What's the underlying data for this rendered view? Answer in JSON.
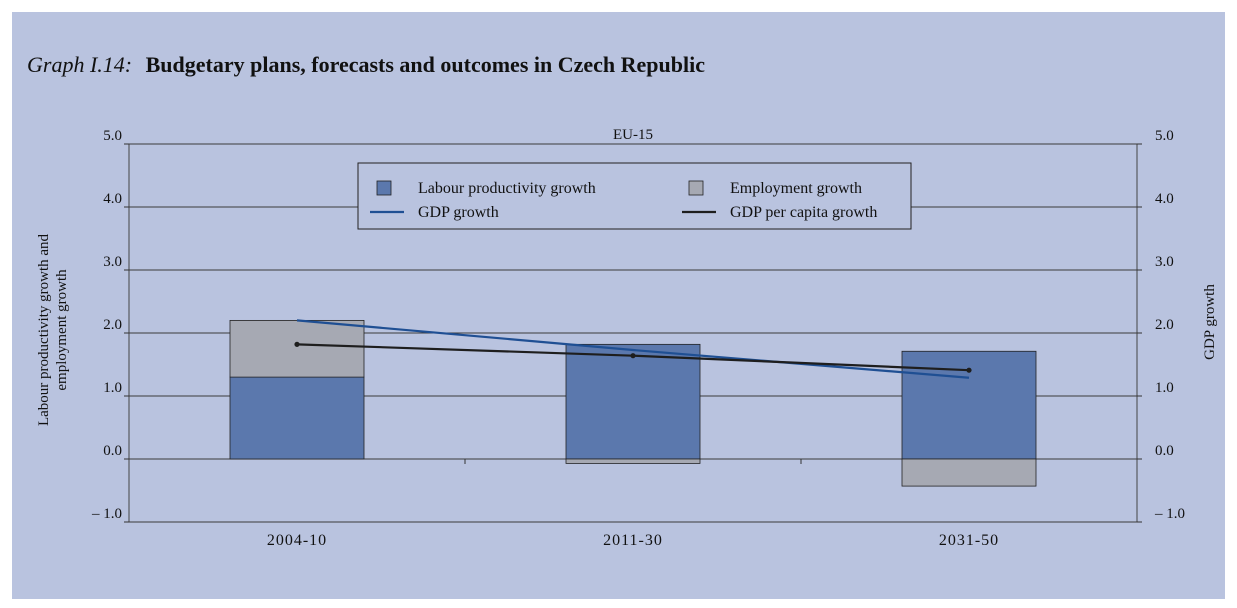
{
  "title": {
    "prefix": "Graph I.14:",
    "main": "Budgetary plans, forecasts and outcomes in Czech Republic"
  },
  "colors": {
    "background": "#b9c3df",
    "productivity": "#5b78ad",
    "employment": "#a6a9b3",
    "gdp_growth_line": "#1f4f93",
    "gdp_per_capita_line": "#1e1e1e",
    "gridline": "#3b3b3b"
  },
  "chart_data": {
    "type": "bar",
    "title": "EU-15",
    "categories": [
      "2004-10",
      "2011-30",
      "2031-50"
    ],
    "ylabel_left": "Labour productivity growth and employment growth",
    "ylabel_right": "GDP growth",
    "ylim": [
      -1.0,
      5.0
    ],
    "yticks_left": [
      "5.0",
      "4.0",
      "3.0",
      "2.0",
      "1.0",
      "0.0",
      "– 1.0"
    ],
    "yticks_right": [
      "5.0",
      "4.0",
      "3.0",
      "2.0",
      "1.0",
      "0.0",
      "– 1.0"
    ],
    "grid": true,
    "legend_position": "top-center",
    "series": [
      {
        "name": "Labour productivity growth",
        "kind": "stacked-bar",
        "values": [
          1.3,
          1.82,
          1.71
        ]
      },
      {
        "name": "Employment growth",
        "kind": "stacked-bar",
        "values": [
          0.9,
          -0.07,
          -0.43
        ]
      },
      {
        "name": "GDP growth",
        "kind": "line",
        "values": [
          2.2,
          1.73,
          1.29
        ]
      },
      {
        "name": "GDP per capita growth",
        "kind": "line-markers",
        "values": [
          1.82,
          1.64,
          1.41
        ]
      }
    ]
  }
}
